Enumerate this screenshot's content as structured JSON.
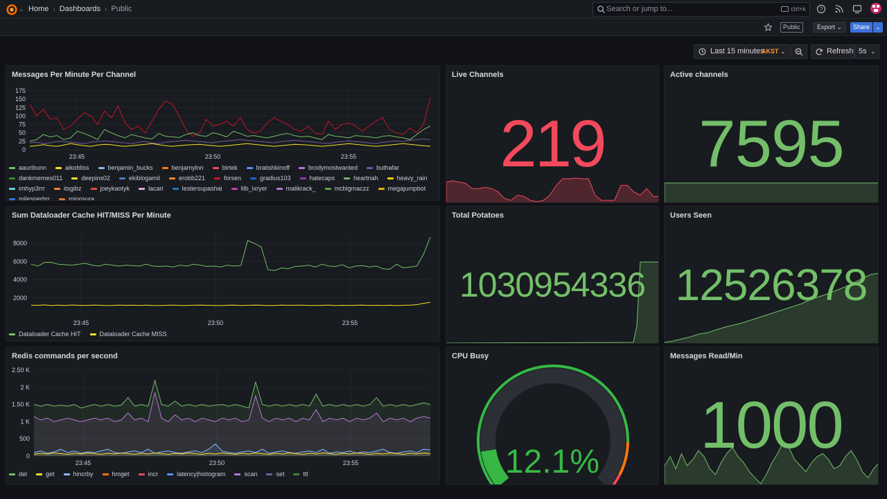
{
  "breadcrumb": [
    "Home",
    "Dashboards",
    "Public"
  ],
  "search": {
    "placeholder": "Search or jump to...",
    "shortcut": "ctrl+k"
  },
  "toolbar": {
    "public_label": "Public",
    "export_label": "Export",
    "share_label": "Share"
  },
  "timepicker": {
    "range_label": "Last 15 minutes",
    "timezone": "AKST",
    "refresh_label": "Refresh",
    "interval": "5s"
  },
  "colors": {
    "accent": "#3d71d9",
    "green": "#73bf69",
    "red": "#f2495c",
    "orange": "#ff780a"
  },
  "panels": {
    "messages": {
      "title": "Messages Per Minute Per Channel"
    },
    "dataloader": {
      "title": "Sum Dataloader Cache HIT/MISS Per Minute"
    },
    "redis": {
      "title": "Redis commands per second"
    },
    "live_channels": {
      "title": "Live Channels",
      "value": "219"
    },
    "active_channels": {
      "title": "Active channels",
      "value": "7595"
    },
    "total_potatoes": {
      "title": "Total Potatoes",
      "value": "1030954336"
    },
    "users_seen": {
      "title": "Users Seen",
      "value": "12526378"
    },
    "cpu_busy": {
      "title": "CPU Busy",
      "value": "12.1%",
      "percent": 12.1
    },
    "messages_read": {
      "title": "Messages Read/Min",
      "value": "1000"
    }
  },
  "chart_data": [
    {
      "type": "line",
      "title": "Messages Per Minute Per Channel",
      "x_ticks": [
        "23:45",
        "23:50",
        "23:55"
      ],
      "y_ticks": [
        "0",
        "25",
        "50",
        "75",
        "100",
        "125",
        "150",
        "175"
      ],
      "ylim": [
        0,
        175
      ],
      "legend": [
        {
          "name": "aauribunn",
          "color": "#73bf69"
        },
        {
          "name": "aikobliss",
          "color": "#fade2a"
        },
        {
          "name": "benjamin_bucks",
          "color": "#8ab8ff"
        },
        {
          "name": "benjamylnn",
          "color": "#ff780a"
        },
        {
          "name": "birtek",
          "color": "#f2495c"
        },
        {
          "name": "bratishkinoff",
          "color": "#5794f2"
        },
        {
          "name": "brodymostwanted",
          "color": "#b877d9"
        },
        {
          "name": "buthafar",
          "color": "#705da0"
        },
        {
          "name": "dankmemes011",
          "color": "#37872d"
        },
        {
          "name": "deepins02",
          "color": "#fade2a"
        },
        {
          "name": "ekiblogamil",
          "color": "#447ebc"
        },
        {
          "name": "erobb221",
          "color": "#f58a31"
        },
        {
          "name": "forsen",
          "color": "#c4162a"
        },
        {
          "name": "gradius103",
          "color": "#1f60c4"
        },
        {
          "name": "hatecaps",
          "color": "#8f3bb8"
        },
        {
          "name": "heartriah",
          "color": "#7eb26d"
        },
        {
          "name": "heavy_rain",
          "color": "#f2cc0c"
        },
        {
          "name": "imhyp3rrr",
          "color": "#6ed0e0"
        },
        {
          "name": "itsgibz",
          "color": "#ef843c"
        },
        {
          "name": "joeykaotyk",
          "color": "#e24d42"
        },
        {
          "name": "lacari",
          "color": "#e5a8e2"
        },
        {
          "name": "lestersupashai",
          "color": "#1f78c1"
        },
        {
          "name": "lilb_lxryer",
          "color": "#ba43a9"
        },
        {
          "name": "malikrack_",
          "color": "#b877d9"
        },
        {
          "name": "mcblgmaczz",
          "color": "#56a64b"
        },
        {
          "name": "megajumpbot",
          "color": "#e0b400"
        },
        {
          "name": "milesperhrr",
          "color": "#3274d9"
        },
        {
          "name": "minosura",
          "color": "#e0752d"
        }
      ],
      "series": [
        {
          "name": "forsen",
          "values": [
            135,
            100,
            120,
            90,
            95,
            60,
            70,
            90,
            110,
            100,
            75,
            115,
            95,
            130,
            80,
            60,
            70,
            50,
            85,
            120,
            145,
            135,
            100,
            60,
            40,
            50,
            90,
            70,
            75,
            85,
            70,
            95,
            60,
            50,
            55,
            80,
            95,
            85,
            75,
            60,
            55,
            70,
            50,
            45,
            85,
            60,
            75,
            80,
            70,
            55,
            70,
            85,
            95,
            60,
            50,
            45,
            65,
            50,
            75,
            155
          ]
        },
        {
          "name": "aauribunn",
          "values": [
            25,
            30,
            45,
            38,
            42,
            30,
            35,
            55,
            48,
            40,
            30,
            60,
            50,
            42,
            35,
            45,
            40,
            35,
            32,
            48,
            40,
            38,
            36,
            45,
            50,
            42,
            40,
            50,
            45,
            38,
            55,
            48,
            40,
            42,
            38,
            35,
            40,
            45,
            48,
            42,
            38,
            40,
            35,
            30,
            45,
            40,
            38,
            35,
            42,
            40,
            38,
            35,
            40,
            42,
            38,
            35,
            30,
            45,
            60,
            70
          ]
        },
        {
          "name": "buthafar",
          "values": [
            20,
            22,
            18,
            20,
            25,
            24,
            22,
            20,
            18,
            22,
            24,
            26,
            24,
            22,
            20,
            18,
            22,
            24,
            20,
            18,
            22,
            24,
            26,
            28,
            26,
            24,
            22,
            20,
            24,
            26,
            28,
            30,
            28,
            26,
            24,
            22,
            20,
            24,
            26,
            28,
            26,
            24,
            22,
            20,
            18,
            22,
            24,
            26,
            24,
            22,
            20,
            18,
            22,
            24,
            26,
            24,
            28,
            30,
            32,
            30
          ]
        },
        {
          "name": "aikobliss",
          "values": [
            10,
            12,
            15,
            12,
            10,
            14,
            18,
            15,
            12,
            10,
            14,
            16,
            15,
            12,
            10,
            12,
            14,
            16,
            18,
            15,
            12,
            10,
            12,
            14,
            15,
            16,
            14,
            12,
            10,
            12,
            14,
            16,
            18,
            16,
            14,
            12,
            10,
            12,
            14,
            16,
            15,
            14,
            12,
            10,
            12,
            14,
            16,
            18,
            16,
            14,
            12,
            10,
            12,
            14,
            16,
            18,
            16,
            14,
            12,
            10
          ]
        }
      ]
    },
    {
      "type": "line",
      "title": "Sum Dataloader Cache HIT/MISS Per Minute",
      "x_ticks": [
        "23:45",
        "23:50",
        "23:55"
      ],
      "y_ticks": [
        "2000",
        "4000",
        "6000",
        "8000"
      ],
      "ylim": [
        0,
        9000
      ],
      "series": [
        {
          "name": "Dataloader Cache HIT",
          "color": "#73bf69",
          "values": [
            5700,
            5500,
            5900,
            5900,
            5700,
            5650,
            5600,
            5700,
            5800,
            5600,
            5500,
            5700,
            5600,
            5500,
            5600,
            5550,
            5500,
            5700,
            5500,
            5450,
            5500,
            5400,
            5600,
            5500,
            5700,
            5600,
            5450,
            5500,
            5400,
            5600,
            5500,
            5550,
            8300,
            8000,
            7600,
            5100,
            5000,
            5300,
            5200,
            5450,
            5500,
            5600,
            5400,
            5700,
            5500,
            5450,
            5650,
            5300,
            5500,
            5550,
            5400,
            5500,
            5200,
            5150,
            5700,
            5300,
            5400,
            5500,
            6800,
            8700
          ]
        },
        {
          "name": "Dataloader Cache MISS",
          "color": "#fade2a",
          "values": [
            1200,
            1180,
            1220,
            1150,
            1200,
            1170,
            1210,
            1180,
            1160,
            1200,
            1190,
            1150,
            1170,
            1200,
            1180,
            1190,
            1160,
            1200,
            1170,
            1150,
            1180,
            1200,
            1170,
            1160,
            1190,
            1200,
            1180,
            1170,
            1150,
            1190,
            1200,
            1170,
            1180,
            1200,
            1190,
            1160,
            1170,
            1200,
            1180,
            1190,
            1200,
            1170,
            1160,
            1180,
            1200,
            1150,
            1180,
            1170,
            1190,
            1200,
            1160,
            1180,
            1170,
            1190,
            1150,
            1180,
            1200,
            1250,
            1400,
            1500
          ]
        }
      ]
    },
    {
      "type": "area",
      "title": "Redis commands per second",
      "x_ticks": [
        "23:45",
        "23:50",
        "23:55"
      ],
      "y_ticks": [
        "0",
        "500",
        "1 K",
        "1.50 K",
        "2 K",
        "2.50 K"
      ],
      "ylim": [
        0,
        2500
      ],
      "series": [
        {
          "name": "del",
          "color": "#73bf69",
          "values": [
            1500,
            1450,
            1500,
            1450,
            1480,
            1450,
            1500,
            1400,
            1450,
            1500,
            1450,
            1500,
            1450,
            1480,
            1700,
            1450,
            1500,
            1450,
            2200,
            1500,
            1450,
            1600,
            1450,
            1500,
            1450,
            1500,
            1450,
            1480,
            1500,
            1450,
            1500,
            1450,
            1400,
            2150,
            1500,
            1450,
            1500,
            1450,
            1500,
            1450,
            1500,
            1450,
            1800,
            1450,
            1500,
            1450,
            1500,
            1450,
            1500,
            1450,
            1500,
            1700,
            1450,
            1500,
            1450,
            1500,
            1450,
            1500,
            1550,
            1500
          ]
        },
        {
          "name": "scan",
          "color": "#b877d9",
          "values": [
            1150,
            1050,
            1100,
            1000,
            1050,
            1100,
            1050,
            1000,
            1050,
            1100,
            1050,
            1100,
            1000,
            1050,
            1250,
            1050,
            1100,
            1000,
            1850,
            1100,
            1000,
            1200,
            1050,
            1100,
            1000,
            1100,
            1050,
            1000,
            1100,
            1050,
            1100,
            1000,
            1050,
            1750,
            1100,
            1000,
            1100,
            1050,
            1100,
            1000,
            1100,
            1050,
            1350,
            1000,
            1100,
            1050,
            1100,
            1000,
            1100,
            1050,
            1100,
            1250,
            1000,
            1100,
            1050,
            1100,
            1000,
            1100,
            1150,
            1100
          ]
        },
        {
          "name": "hincrby",
          "color": "#8ab8ff",
          "values": [
            100,
            150,
            80,
            120,
            200,
            100,
            150,
            80,
            120,
            100,
            150,
            200,
            100,
            80,
            120,
            150,
            100,
            200,
            80,
            120,
            150,
            100,
            80,
            120,
            150,
            100,
            200,
            350,
            150,
            100,
            80,
            120,
            150,
            100,
            200,
            80,
            120,
            150,
            100,
            80,
            120,
            150,
            100,
            200,
            80,
            120,
            100,
            150,
            80,
            120,
            100,
            150,
            200,
            100,
            80,
            120,
            150,
            100,
            200,
            180
          ]
        },
        {
          "name": "get",
          "color": "#fade2a",
          "values": [
            50,
            80,
            60,
            90,
            70,
            50,
            80,
            60,
            90,
            70,
            50,
            80,
            60,
            90,
            70,
            50,
            80,
            60,
            90,
            70,
            50,
            80,
            60,
            90,
            70,
            50,
            80,
            60,
            90,
            70,
            50,
            80,
            60,
            90,
            70,
            50,
            80,
            60,
            90,
            70,
            50,
            80,
            60,
            90,
            70,
            50,
            80,
            60,
            90,
            70,
            50,
            80,
            60,
            90,
            70,
            50,
            80,
            60,
            90,
            70
          ]
        }
      ],
      "legend": [
        {
          "name": "del",
          "color": "#73bf69"
        },
        {
          "name": "get",
          "color": "#fade2a"
        },
        {
          "name": "hincrby",
          "color": "#8ab8ff"
        },
        {
          "name": "hmget",
          "color": "#ff780a"
        },
        {
          "name": "incr",
          "color": "#f2495c"
        },
        {
          "name": "latency|histogram",
          "color": "#5794f2"
        },
        {
          "name": "scan",
          "color": "#b877d9"
        },
        {
          "name": "set",
          "color": "#705da0"
        },
        {
          "name": "ttl",
          "color": "#37872d"
        }
      ]
    }
  ]
}
